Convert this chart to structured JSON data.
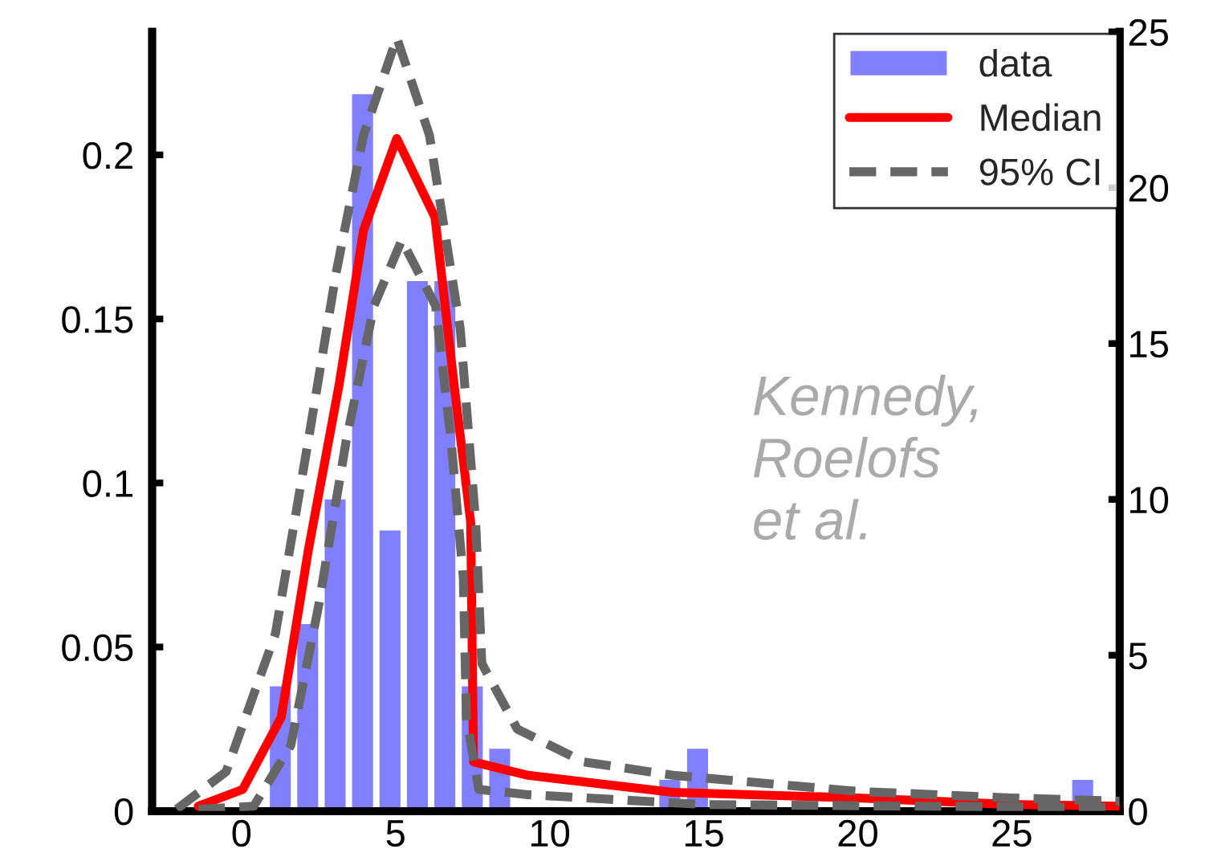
{
  "chart_data": {
    "type": "line",
    "xlim": [
      -2.9,
      28.5
    ],
    "xticks": [
      0,
      5,
      10,
      15,
      20,
      25
    ],
    "ylim": [
      0,
      0.2375
    ],
    "yticks": [
      0,
      0.05,
      0.1,
      0.15,
      0.2
    ],
    "y2lim": [
      0,
      25
    ],
    "y2ticks": [
      0,
      5,
      10,
      15,
      20,
      25
    ],
    "legend": "top right",
    "grid": false,
    "annotations": [
      "Kennedy,\nRoelofs\net al."
    ],
    "series": [
      {
        "name": "data",
        "type": "bar",
        "axis": "y2",
        "color": "#8080ff",
        "x": [
          1.26,
          2.15,
          3.04,
          3.93,
          4.82,
          5.71,
          6.6,
          7.49,
          8.38,
          13.9,
          14.8,
          27.3
        ],
        "values": [
          4,
          6,
          10,
          23,
          9,
          17,
          17,
          4,
          2,
          1,
          2,
          1
        ]
      },
      {
        "name": "Median",
        "color": "#ff0000",
        "line_style": "solid",
        "x": [
          -1.4,
          0.04,
          1.29,
          2.17,
          3.17,
          3.96,
          5.04,
          6.28,
          6.9,
          7.44,
          7.53,
          9.3,
          14.0,
          20,
          25,
          28.5
        ],
        "values": [
          0.0015,
          0.0066,
          0.0286,
          0.0795,
          0.13,
          0.177,
          0.205,
          0.181,
          0.13,
          0.088,
          0.015,
          0.0109,
          0.0057,
          0.004,
          0.002,
          0.0015
        ]
      },
      {
        "name": "95% CI",
        "color": "#666666",
        "line_style": "dashed",
        "x": [
          -2.1,
          -0.5,
          1.1,
          2.17,
          3.07,
          3.96,
          5.04,
          6.1,
          7.1,
          7.6,
          7.8,
          8.95,
          11.1,
          14.0,
          20,
          25,
          28.5
        ],
        "values": [
          0.0006,
          0.012,
          0.054,
          0.113,
          0.164,
          0.206,
          0.2357,
          0.206,
          0.147,
          0.088,
          0.045,
          0.025,
          0.015,
          0.0109,
          0.006,
          0.004,
          0.003
        ]
      },
      {
        "color": "#666666",
        "line_style": "dashed",
        "x": [
          -1.4,
          0.4,
          1.6,
          2.5,
          3.4,
          4.3,
          5.2,
          6.3,
          6.8,
          7.2,
          7.3,
          7.7,
          9.3,
          15,
          28.5
        ],
        "values": [
          0.0005,
          0.0015,
          0.02,
          0.0624,
          0.113,
          0.154,
          0.174,
          0.154,
          0.113,
          0.071,
          0.0286,
          0.0066,
          0.005,
          0.002,
          0.001
        ]
      }
    ]
  }
}
